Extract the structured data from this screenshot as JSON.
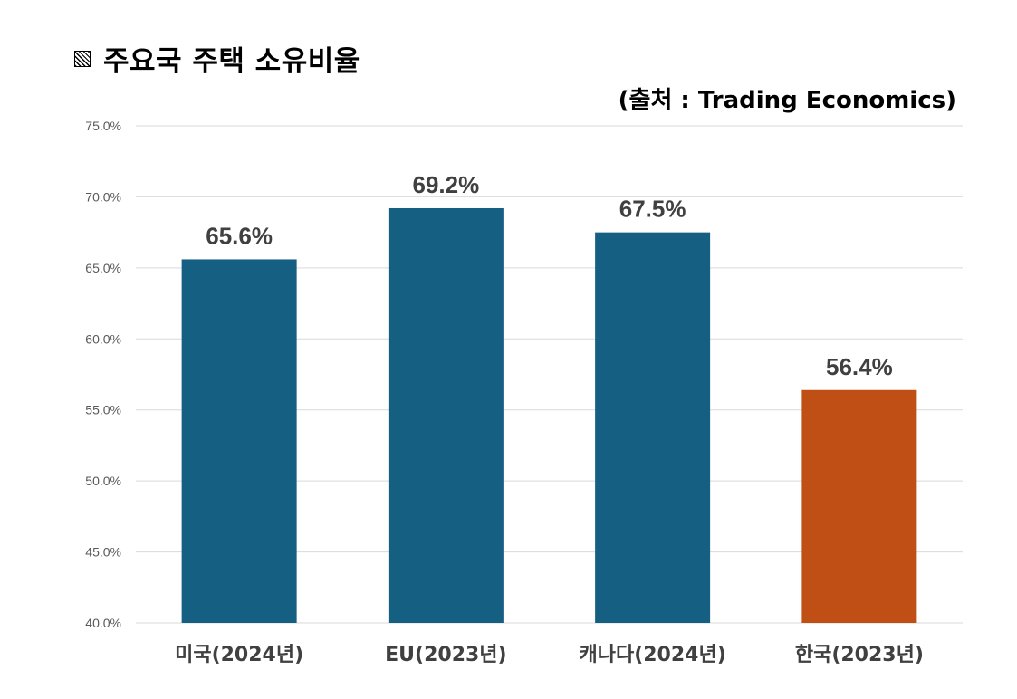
{
  "header": {
    "title": "주요국 주택 소유비율",
    "source": "(출처 : Trading Economics)",
    "title_icon": "hatched-square-icon"
  },
  "chart_data": {
    "type": "bar",
    "title": "주요국 주택 소유비율",
    "categories": [
      "미국(2024년)",
      "EU(2023년)",
      "캐나다(2024년)",
      "한국(2023년)"
    ],
    "values": [
      65.6,
      69.2,
      67.5,
      56.4
    ],
    "data_labels": [
      "65.6%",
      "69.2%",
      "67.5%",
      "56.4%"
    ],
    "colors": [
      "#155f82",
      "#155f82",
      "#155f82",
      "#c04f15"
    ],
    "ylim": [
      40,
      75
    ],
    "yticks": [
      40,
      45,
      50,
      55,
      60,
      65,
      70,
      75
    ],
    "ytick_labels": [
      "40.0%",
      "45.0%",
      "50.0%",
      "55.0%",
      "60.0%",
      "65.0%",
      "70.0%",
      "75.0%"
    ],
    "xlabel": "",
    "ylabel": "",
    "grid": true,
    "legend": "none"
  }
}
